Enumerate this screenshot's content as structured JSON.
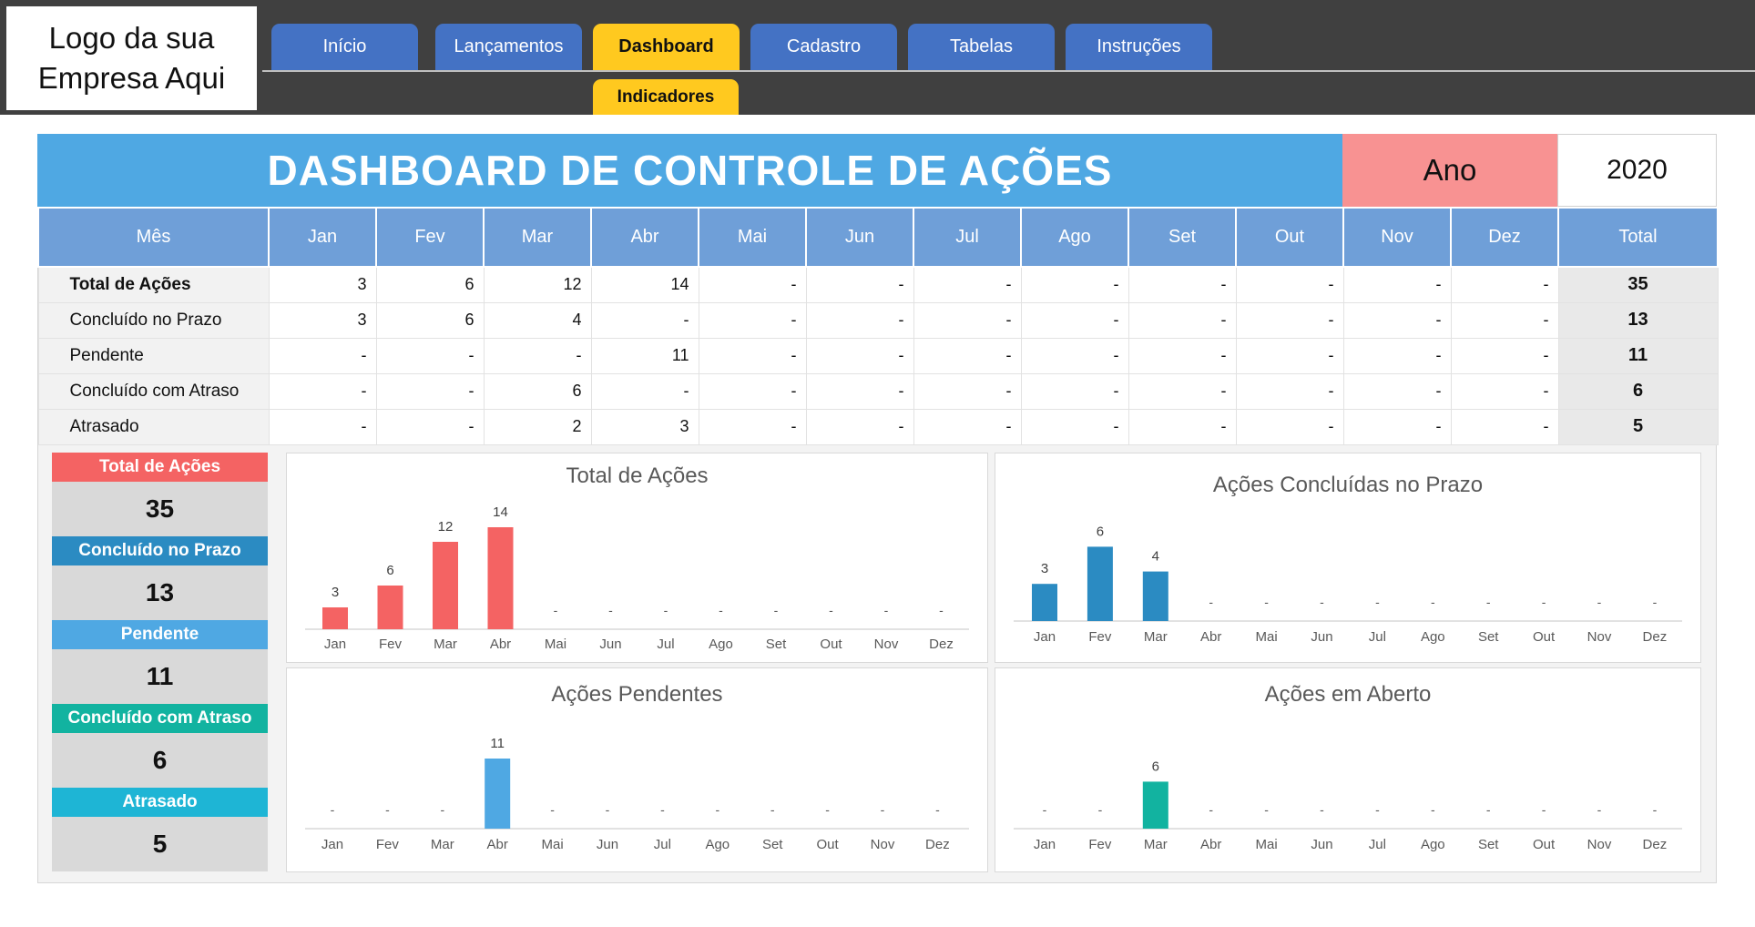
{
  "logo": {
    "text": "Logo da sua\nEmpresa Aqui"
  },
  "nav": {
    "tabs": [
      {
        "label": "Início"
      },
      {
        "label": "Lançamentos"
      },
      {
        "label": "Dashboard",
        "active": true
      },
      {
        "label": "Cadastro"
      },
      {
        "label": "Tabelas"
      },
      {
        "label": "Instruções"
      }
    ],
    "subtab": "Indicadores"
  },
  "header": {
    "title": "DASHBOARD DE CONTROLE DE AÇÕES",
    "year_label": "Ano",
    "year_value": "2020"
  },
  "table": {
    "columns": [
      "Mês",
      "Jan",
      "Fev",
      "Mar",
      "Abr",
      "Mai",
      "Jun",
      "Jul",
      "Ago",
      "Set",
      "Out",
      "Nov",
      "Dez",
      "Total"
    ],
    "rows": [
      {
        "label": "Total de Ações",
        "values": [
          "3",
          "6",
          "12",
          "14",
          "-",
          "-",
          "-",
          "-",
          "-",
          "-",
          "-",
          "-"
        ],
        "total": "35"
      },
      {
        "label": "Concluído no Prazo",
        "values": [
          "3",
          "6",
          "4",
          "-",
          "-",
          "-",
          "-",
          "-",
          "-",
          "-",
          "-",
          "-"
        ],
        "total": "13"
      },
      {
        "label": "Pendente",
        "values": [
          "-",
          "-",
          "-",
          "11",
          "-",
          "-",
          "-",
          "-",
          "-",
          "-",
          "-",
          "-"
        ],
        "total": "11"
      },
      {
        "label": "Concluído com Atraso",
        "values": [
          "-",
          "-",
          "6",
          "-",
          "-",
          "-",
          "-",
          "-",
          "-",
          "-",
          "-",
          "-"
        ],
        "total": "6"
      },
      {
        "label": "Atrasado",
        "values": [
          "-",
          "-",
          "2",
          "3",
          "-",
          "-",
          "-",
          "-",
          "-",
          "-",
          "-",
          "-"
        ],
        "total": "5"
      }
    ]
  },
  "kpis": [
    {
      "label": "Total de Ações",
      "value": "35",
      "color": "#f46363"
    },
    {
      "label": "Concluído no Prazo",
      "value": "13",
      "color": "#2b8bc2"
    },
    {
      "label": "Pendente",
      "value": "11",
      "color": "#4fa8e3"
    },
    {
      "label": "Concluído com Atraso",
      "value": "6",
      "color": "#12b3a0"
    },
    {
      "label": "Atrasado",
      "value": "5",
      "color": "#1eb5d5"
    }
  ],
  "chart_data": [
    {
      "type": "bar",
      "title": "Total de Ações",
      "categories": [
        "Jan",
        "Fev",
        "Mar",
        "Abr",
        "Mai",
        "Jun",
        "Jul",
        "Ago",
        "Set",
        "Out",
        "Nov",
        "Dez"
      ],
      "values": [
        3,
        6,
        12,
        14,
        null,
        null,
        null,
        null,
        null,
        null,
        null,
        null
      ],
      "value_labels": [
        "3",
        "6",
        "12",
        "14",
        "-",
        "-",
        "-",
        "-",
        "-",
        "-",
        "-",
        "-"
      ],
      "color": "#f46363"
    },
    {
      "type": "bar",
      "title": "Ações Concluídas no Prazo",
      "categories": [
        "Jan",
        "Fev",
        "Mar",
        "Abr",
        "Mai",
        "Jun",
        "Jul",
        "Ago",
        "Set",
        "Out",
        "Nov",
        "Dez"
      ],
      "values": [
        3,
        6,
        4,
        null,
        null,
        null,
        null,
        null,
        null,
        null,
        null,
        null
      ],
      "value_labels": [
        "3",
        "6",
        "4",
        "-",
        "-",
        "-",
        "-",
        "-",
        "-",
        "-",
        "-",
        "-"
      ],
      "color": "#2b8bc2"
    },
    {
      "type": "bar",
      "title": "Ações Pendentes",
      "categories": [
        "Jan",
        "Fev",
        "Mar",
        "Abr",
        "Mai",
        "Jun",
        "Jul",
        "Ago",
        "Set",
        "Out",
        "Nov",
        "Dez"
      ],
      "values": [
        null,
        null,
        null,
        11,
        null,
        null,
        null,
        null,
        null,
        null,
        null,
        null
      ],
      "value_labels": [
        "-",
        "-",
        "-",
        "11",
        "-",
        "-",
        "-",
        "-",
        "-",
        "-",
        "-",
        "-"
      ],
      "color": "#4fa8e3"
    },
    {
      "type": "bar",
      "title": "Ações em Aberto",
      "categories": [
        "Jan",
        "Fev",
        "Mar",
        "Abr",
        "Mai",
        "Jun",
        "Jul",
        "Ago",
        "Set",
        "Out",
        "Nov",
        "Dez"
      ],
      "values": [
        null,
        null,
        6,
        null,
        null,
        null,
        null,
        null,
        null,
        null,
        null,
        null
      ],
      "value_labels": [
        "-",
        "-",
        "6",
        "-",
        "-",
        "-",
        "-",
        "-",
        "-",
        "-",
        "-",
        "-"
      ],
      "color": "#12b3a0"
    }
  ]
}
